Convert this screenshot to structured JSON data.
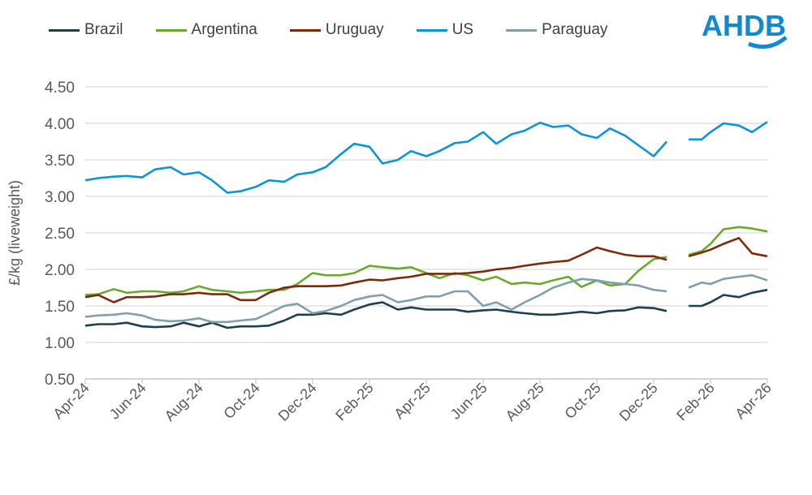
{
  "logo_text": "AHDB",
  "colors": {
    "Brazil": "#1d4050",
    "Argentina": "#6aaa2b",
    "Uruguay": "#7b2a0c",
    "US": "#0b95d6",
    "Paraguay": "#7f9fae",
    "logo": "#0f8ad0"
  },
  "chart_data": {
    "type": "line",
    "title": "",
    "xlabel": "",
    "ylabel": "£/kg (liveweight)",
    "ylim": [
      0.5,
      4.5
    ],
    "yticks": [
      "0.50",
      "1.00",
      "1.50",
      "2.00",
      "2.50",
      "3.00",
      "3.50",
      "4.00",
      "4.50"
    ],
    "xticks": [
      "Apr-24",
      "Jun-24",
      "Aug-24",
      "Oct-24",
      "Dec-24",
      "Feb-25",
      "Apr-25",
      "Jun-25",
      "Aug-25",
      "Oct-25",
      "Dec-25",
      "Feb-26",
      "Apr-26"
    ],
    "grid": "horizontal",
    "legend": "top",
    "x": [
      "2024-04-01",
      "2024-04-15",
      "2024-05-01",
      "2024-05-15",
      "2024-06-01",
      "2024-06-15",
      "2024-07-01",
      "2024-07-15",
      "2024-08-01",
      "2024-08-15",
      "2024-09-01",
      "2024-09-15",
      "2024-10-01",
      "2024-10-15",
      "2024-11-01",
      "2024-11-15",
      "2024-12-01",
      "2024-12-15",
      "2025-01-01",
      "2025-01-15",
      "2025-02-01",
      "2025-02-15",
      "2025-03-01",
      "2025-03-15",
      "2025-04-01",
      "2025-04-15",
      "2025-05-01",
      "2025-05-15",
      "2025-06-01",
      "2025-06-15",
      "2025-07-01",
      "2025-07-15",
      "2025-08-01",
      "2025-08-15",
      "2025-09-01",
      "2025-09-15",
      "2025-10-01",
      "2025-10-15",
      "2025-11-01",
      "2025-11-15",
      "2025-12-01",
      "2025-12-15",
      "2026-01-01",
      "2026-01-08",
      "2026-01-22",
      "2026-02-01",
      "2026-02-15",
      "2026-03-01",
      "2026-03-15",
      "2026-04-01"
    ],
    "series": [
      {
        "name": "Brazil",
        "values": [
          1.23,
          1.25,
          1.25,
          1.27,
          1.22,
          1.21,
          1.22,
          1.27,
          1.22,
          1.27,
          1.2,
          1.22,
          1.22,
          1.23,
          1.3,
          1.38,
          1.38,
          1.4,
          1.38,
          1.45,
          1.52,
          1.55,
          1.45,
          1.48,
          1.45,
          1.45,
          1.45,
          1.42,
          1.44,
          1.45,
          1.42,
          1.4,
          1.38,
          1.38,
          1.4,
          1.42,
          1.4,
          1.43,
          1.44,
          1.48,
          1.47,
          1.43,
          null,
          1.5,
          1.5,
          1.55,
          1.65,
          1.62,
          1.68,
          1.72
        ]
      },
      {
        "name": "Argentina",
        "values": [
          1.65,
          1.66,
          1.73,
          1.68,
          1.7,
          1.7,
          1.68,
          1.7,
          1.77,
          1.72,
          1.7,
          1.68,
          1.7,
          1.72,
          1.72,
          1.8,
          1.95,
          1.92,
          1.92,
          1.95,
          2.05,
          2.03,
          2.01,
          2.03,
          1.95,
          1.88,
          1.95,
          1.92,
          1.85,
          1.9,
          1.8,
          1.82,
          1.8,
          1.85,
          1.9,
          1.76,
          1.85,
          1.78,
          1.8,
          1.98,
          2.14,
          2.17,
          null,
          2.2,
          2.25,
          2.35,
          2.55,
          2.58,
          2.56,
          2.52
        ]
      },
      {
        "name": "Uruguay",
        "values": [
          1.62,
          1.65,
          1.55,
          1.62,
          1.62,
          1.63,
          1.66,
          1.66,
          1.68,
          1.66,
          1.66,
          1.58,
          1.58,
          1.68,
          1.75,
          1.77,
          1.77,
          1.77,
          1.78,
          1.82,
          1.86,
          1.85,
          1.88,
          1.9,
          1.94,
          1.94,
          1.94,
          1.95,
          1.97,
          2.0,
          2.02,
          2.05,
          2.08,
          2.1,
          2.12,
          2.2,
          2.3,
          2.25,
          2.2,
          2.18,
          2.18,
          2.13,
          null,
          2.18,
          2.23,
          2.27,
          2.35,
          2.43,
          2.22,
          2.18
        ]
      },
      {
        "name": "US",
        "values": [
          3.22,
          3.25,
          3.27,
          3.28,
          3.26,
          3.37,
          3.4,
          3.3,
          3.33,
          3.22,
          3.05,
          3.07,
          3.13,
          3.22,
          3.2,
          3.3,
          3.33,
          3.4,
          3.58,
          3.72,
          3.68,
          3.45,
          3.5,
          3.62,
          3.55,
          3.62,
          3.73,
          3.75,
          3.88,
          3.72,
          3.85,
          3.9,
          4.01,
          3.95,
          3.97,
          3.85,
          3.8,
          3.93,
          3.83,
          3.7,
          3.55,
          3.75,
          null,
          3.78,
          3.78,
          3.88,
          4.0,
          3.97,
          3.88,
          4.02
        ]
      },
      {
        "name": "Paraguay",
        "values": [
          1.35,
          1.37,
          1.38,
          1.4,
          1.37,
          1.31,
          1.29,
          1.3,
          1.33,
          1.28,
          1.28,
          1.3,
          1.32,
          1.4,
          1.5,
          1.53,
          1.4,
          1.43,
          1.5,
          1.58,
          1.63,
          1.65,
          1.55,
          1.58,
          1.63,
          1.63,
          1.7,
          1.7,
          1.5,
          1.55,
          1.45,
          1.55,
          1.65,
          1.75,
          1.82,
          1.87,
          1.85,
          1.82,
          1.8,
          1.78,
          1.72,
          1.7,
          null,
          1.75,
          1.82,
          1.8,
          1.87,
          1.9,
          1.92,
          1.85
        ]
      }
    ]
  }
}
